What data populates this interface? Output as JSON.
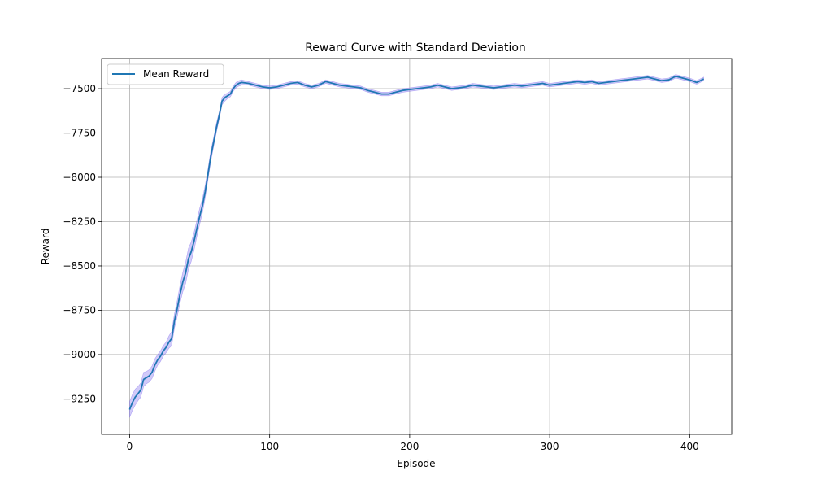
{
  "chart_data": {
    "type": "line",
    "title": "Reward Curve with Standard Deviation",
    "xlabel": "Episode",
    "ylabel": "Reward",
    "xlim": [
      -20,
      430
    ],
    "ylim": [
      -9450,
      -7330
    ],
    "xticks": [
      0,
      100,
      200,
      300,
      400
    ],
    "yticks": [
      -9250,
      -9000,
      -8750,
      -8500,
      -8250,
      -8000,
      -7750,
      -7500
    ],
    "grid": true,
    "legend_position": "top-left",
    "colors": {
      "line": "#1f77b4",
      "band": "#7b68ee",
      "grid": "#b0b0b0"
    },
    "series": [
      {
        "name": "Mean Reward",
        "x": [
          0,
          2,
          4,
          6,
          8,
          10,
          12,
          14,
          16,
          18,
          20,
          22,
          24,
          26,
          28,
          30,
          32,
          34,
          36,
          38,
          40,
          42,
          44,
          46,
          48,
          50,
          52,
          54,
          56,
          58,
          60,
          62,
          64,
          66,
          68,
          70,
          72,
          74,
          76,
          78,
          80,
          85,
          90,
          95,
          100,
          105,
          110,
          115,
          120,
          125,
          130,
          135,
          140,
          145,
          150,
          155,
          160,
          165,
          170,
          175,
          180,
          185,
          190,
          195,
          200,
          205,
          210,
          215,
          220,
          225,
          230,
          235,
          240,
          245,
          250,
          255,
          260,
          265,
          270,
          275,
          280,
          285,
          290,
          295,
          300,
          305,
          310,
          315,
          320,
          325,
          330,
          335,
          340,
          345,
          350,
          355,
          360,
          365,
          370,
          375,
          380,
          385,
          390,
          395,
          400,
          405,
          410
        ],
        "mean": [
          -9310,
          -9270,
          -9240,
          -9220,
          -9200,
          -9140,
          -9130,
          -9120,
          -9100,
          -9060,
          -9030,
          -9010,
          -8980,
          -8960,
          -8930,
          -8910,
          -8810,
          -8740,
          -8660,
          -8590,
          -8540,
          -8460,
          -8420,
          -8360,
          -8290,
          -8220,
          -8160,
          -8080,
          -7980,
          -7880,
          -7800,
          -7720,
          -7650,
          -7570,
          -7550,
          -7540,
          -7530,
          -7500,
          -7480,
          -7470,
          -7465,
          -7470,
          -7480,
          -7490,
          -7495,
          -7490,
          -7480,
          -7470,
          -7465,
          -7480,
          -7490,
          -7480,
          -7460,
          -7470,
          -7480,
          -7485,
          -7490,
          -7495,
          -7510,
          -7520,
          -7530,
          -7530,
          -7520,
          -7510,
          -7505,
          -7500,
          -7495,
          -7490,
          -7480,
          -7490,
          -7500,
          -7495,
          -7490,
          -7480,
          -7485,
          -7490,
          -7495,
          -7490,
          -7485,
          -7480,
          -7485,
          -7480,
          -7475,
          -7470,
          -7480,
          -7475,
          -7470,
          -7465,
          -7460,
          -7465,
          -7460,
          -7470,
          -7465,
          -7460,
          -7455,
          -7450,
          -7445,
          -7440,
          -7435,
          -7445,
          -7455,
          -7450,
          -7430,
          -7440,
          -7450,
          -7465,
          -7445
        ],
        "std": [
          45,
          45,
          45,
          40,
          40,
          40,
          35,
          35,
          35,
          35,
          30,
          30,
          30,
          30,
          35,
          40,
          40,
          45,
          50,
          55,
          60,
          60,
          55,
          50,
          45,
          45,
          40,
          35,
          30,
          30,
          25,
          25,
          20,
          20,
          20,
          15,
          15,
          15,
          15,
          15,
          15,
          10,
          10,
          10,
          10,
          10,
          10,
          10,
          10,
          10,
          10,
          10,
          10,
          10,
          10,
          10,
          10,
          10,
          10,
          10,
          10,
          10,
          10,
          10,
          10,
          10,
          10,
          10,
          10,
          10,
          10,
          10,
          10,
          10,
          10,
          10,
          10,
          10,
          10,
          10,
          10,
          10,
          10,
          10,
          10,
          10,
          10,
          10,
          10,
          10,
          10,
          10,
          10,
          10,
          10,
          10,
          10,
          10,
          10,
          10,
          10,
          10,
          10,
          10,
          10,
          10,
          10
        ]
      }
    ]
  }
}
